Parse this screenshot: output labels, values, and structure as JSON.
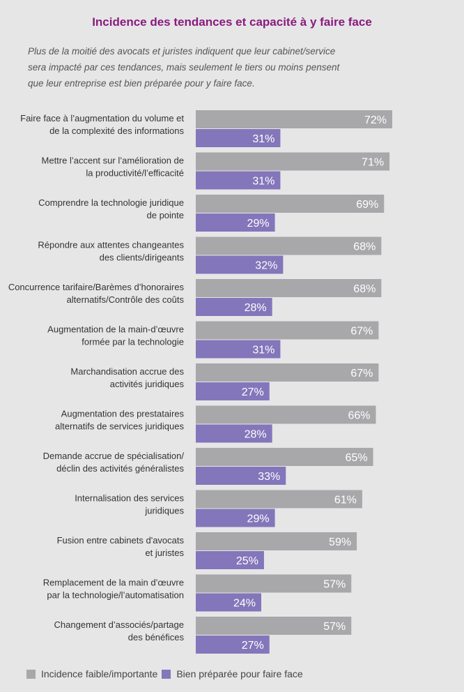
{
  "title": "Incidence des tendances et capacité à y faire face",
  "subtitle_lines": [
    "Plus de la moitié des avocats et juristes indiquent que leur cabinet/service",
    "sera impacté par ces tendances, mais seulement le tiers ou moins pensent",
    "que leur entreprise est bien préparée pour y faire face."
  ],
  "colors": {
    "title": "#8b1a7e",
    "series_incidence": "#a8a8ab",
    "series_prepared": "#8476ba",
    "background": "#e6e6e7"
  },
  "legend": [
    {
      "label": "Incidence faible/importante",
      "color": "#a8a8ab"
    },
    {
      "label": "Bien préparée pour faire face",
      "color": "#8476ba"
    }
  ],
  "chart_data": {
    "type": "bar",
    "orientation": "horizontal",
    "grid": false,
    "legend_position": "bottom",
    "categories": [
      [
        "Faire face à l’augmentation du volume et",
        "de la complexité des informations"
      ],
      [
        "Mettre l’accent sur l’amélioration de",
        "la productivité/l’efficacité"
      ],
      [
        "Comprendre la technologie juridique",
        "de pointe"
      ],
      [
        "Répondre aux attentes changeantes",
        "des clients/dirigeants"
      ],
      [
        "Concurrence tarifaire/Barèmes d’honoraires",
        "alternatifs/Contrôle des coûts"
      ],
      [
        "Augmentation de la main-d’œuvre",
        "formée par la technologie"
      ],
      [
        "Marchandisation accrue des",
        "activités juridiques"
      ],
      [
        "Augmentation des prestataires",
        "alternatifs de services juridiques"
      ],
      [
        "Demande accrue de spécialisation/",
        "déclin des activités généralistes"
      ],
      [
        "Internalisation des services",
        "juridiques"
      ],
      [
        "Fusion entre cabinets d'avocats",
        "et juristes"
      ],
      [
        "Remplacement de la main d’œuvre",
        "par la technologie/l’automatisation"
      ],
      [
        "Changement d’associés/partage",
        "des bénéfices"
      ]
    ],
    "series": [
      {
        "name": "Incidence faible/importante",
        "values": [
          72,
          71,
          69,
          68,
          68,
          67,
          67,
          66,
          65,
          61,
          59,
          57,
          57
        ]
      },
      {
        "name": "Bien préparée pour faire face",
        "values": [
          31,
          31,
          29,
          32,
          28,
          31,
          27,
          28,
          33,
          29,
          25,
          24,
          27
        ]
      }
    ],
    "value_suffix": "%",
    "xlim": [
      0,
      100
    ]
  }
}
